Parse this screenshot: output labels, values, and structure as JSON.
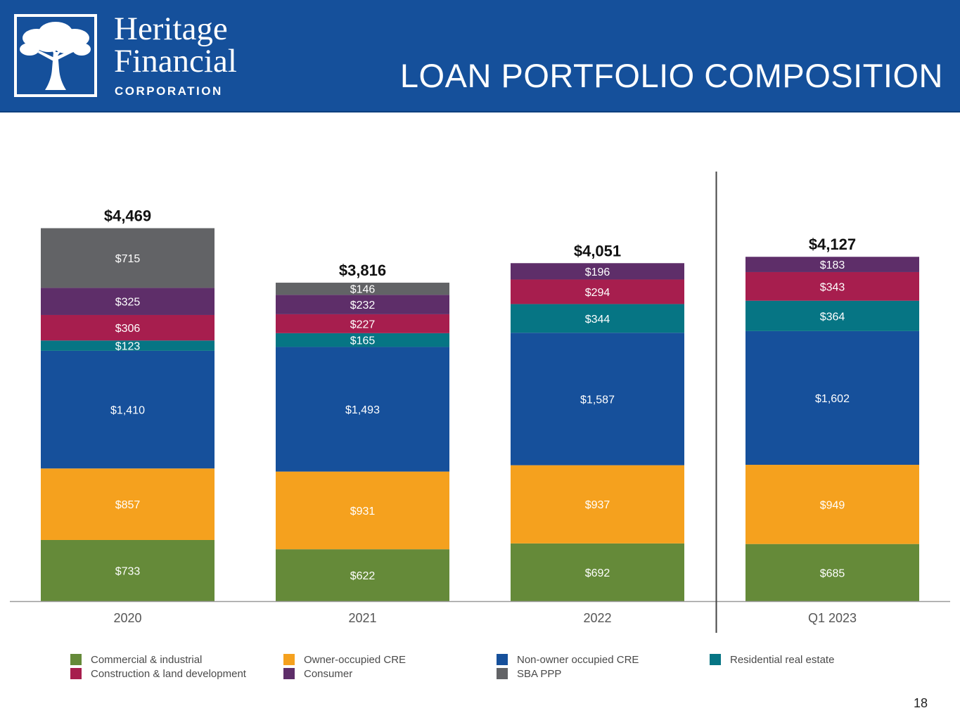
{
  "header": {
    "logo_name_line1": "Heritage",
    "logo_name_line2": "Financial",
    "logo_sub": "CORPORATION",
    "title": "LOAN PORTFOLIO COMPOSITION",
    "logo_icon": "tree-icon"
  },
  "page_number": "18",
  "chart_data": {
    "type": "bar",
    "stacked": true,
    "title": "LOAN PORTFOLIO COMPOSITION",
    "xlabel": "",
    "ylabel": "",
    "value_prefix": "$",
    "categories": [
      "2020",
      "2021",
      "2022",
      "Q1 2023"
    ],
    "totals": [
      "$4,469",
      "$3,816",
      "$4,051",
      "$4,127"
    ],
    "divider_after_category": "2022",
    "legend_position": "bottom",
    "grid": false,
    "series": [
      {
        "name": "Commercial & industrial",
        "color": "#658a39",
        "values": [
          733,
          622,
          692,
          685
        ],
        "labels": [
          "$733",
          "$622",
          "$692",
          "$685"
        ]
      },
      {
        "name": "Owner-occupied CRE",
        "color": "#f5a11e",
        "values": [
          857,
          931,
          937,
          949
        ],
        "labels": [
          "$857",
          "$931",
          "$937",
          "$949"
        ]
      },
      {
        "name": "Non-owner occupied CRE",
        "color": "#16509b",
        "values": [
          1410,
          1493,
          1587,
          1602
        ],
        "labels": [
          "$1,410",
          "$1,493",
          "$1,587",
          "$1,602"
        ]
      },
      {
        "name": "Residential real estate",
        "color": "#067584",
        "values": [
          123,
          165,
          344,
          364
        ],
        "labels": [
          "$123",
          "$165",
          "$344",
          "$364"
        ]
      },
      {
        "name": "Construction & land development",
        "color": "#a71e4e",
        "values": [
          306,
          227,
          294,
          343
        ],
        "labels": [
          "$306",
          "$227",
          "$294",
          "$343"
        ]
      },
      {
        "name": "Consumer",
        "color": "#5e2e69",
        "values": [
          325,
          232,
          196,
          183
        ],
        "labels": [
          "$325",
          "$232",
          "$196",
          "$183"
        ]
      },
      {
        "name": "SBA PPP",
        "color": "#626366",
        "values": [
          715,
          146,
          0,
          0
        ],
        "labels": [
          "$715",
          "$146",
          "",
          ""
        ]
      }
    ],
    "legend_order": [
      0,
      1,
      2,
      3,
      4,
      5,
      6
    ]
  }
}
